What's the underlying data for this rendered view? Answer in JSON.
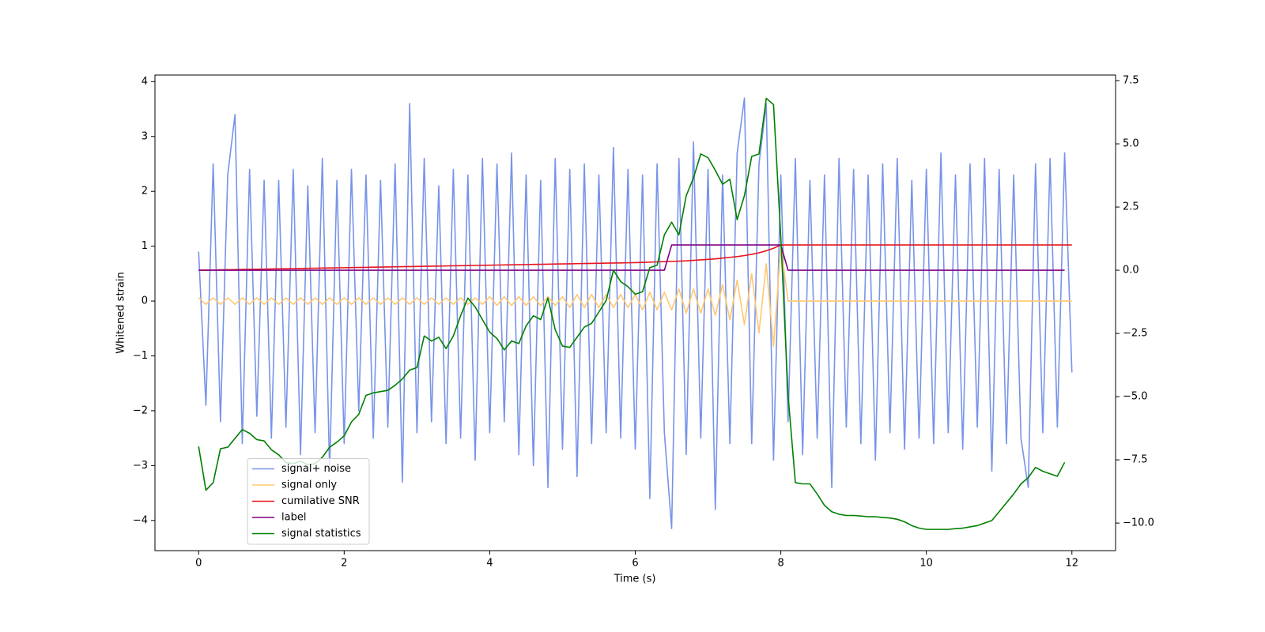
{
  "chart_data": {
    "type": "line",
    "xlabel": "Time (s)",
    "ylabel": "Whitened strain",
    "xlim": [
      -0.6,
      12.6
    ],
    "ylim": [
      -4.55,
      4.12
    ],
    "y2lim": [
      -11.09,
      7.72
    ],
    "xticks": [
      0,
      2,
      4,
      6,
      8,
      10,
      12
    ],
    "yticks": [
      {
        "value": -4,
        "label": "−4"
      },
      {
        "value": -3,
        "label": "−3"
      },
      {
        "value": -2,
        "label": "−2"
      },
      {
        "value": -1,
        "label": "−1"
      },
      0,
      1,
      2,
      3,
      4
    ],
    "y2ticks": [
      {
        "value": -10,
        "label": "−10.0"
      },
      {
        "value": -7.5,
        "label": "−7.5"
      },
      {
        "value": -5,
        "label": "−5.0"
      },
      {
        "value": -2.5,
        "label": "−2.5"
      },
      {
        "value": 0,
        "label": "0.0"
      },
      2.5,
      {
        "value": 5,
        "label": "5.0"
      },
      7.5
    ],
    "legend": "lower left",
    "x": [
      0,
      0.1,
      0.2,
      0.3,
      0.4,
      0.5,
      0.6,
      0.7,
      0.8,
      0.9,
      1,
      1.1,
      1.2,
      1.3,
      1.4,
      1.5,
      1.6,
      1.7,
      1.8,
      1.9,
      2,
      2.1,
      2.2,
      2.3,
      2.4,
      2.5,
      2.6,
      2.7,
      2.8,
      2.9,
      3,
      3.1,
      3.2,
      3.3,
      3.4,
      3.5,
      3.6,
      3.7,
      3.8,
      3.9,
      4,
      4.1,
      4.2,
      4.3,
      4.4,
      4.5,
      4.6,
      4.7,
      4.8,
      4.9,
      5,
      5.1,
      5.2,
      5.3,
      5.4,
      5.5,
      5.6,
      5.7,
      5.8,
      5.9,
      6,
      6.1,
      6.2,
      6.3,
      6.4,
      6.5,
      6.6,
      6.7,
      6.8,
      6.9,
      7,
      7.1,
      7.2,
      7.3,
      7.4,
      7.5,
      7.6,
      7.7,
      7.8,
      7.9,
      8,
      8.1,
      8.2,
      8.3,
      8.4,
      8.5,
      8.6,
      8.7,
      8.8,
      8.9,
      9,
      9.1,
      9.2,
      9.3,
      9.4,
      9.5,
      9.6,
      9.7,
      9.8,
      9.9,
      10,
      10.1,
      10.2,
      10.3,
      10.4,
      10.5,
      10.6,
      10.7,
      10.8,
      10.9,
      11,
      11.1,
      11.2,
      11.3,
      11.4,
      11.5,
      11.6,
      11.7,
      11.8,
      11.9,
      12
    ],
    "series": [
      {
        "name": "signal+ noise",
        "color": "#7893e8",
        "axis": "y",
        "values": [
          0.9,
          -1.9,
          2.5,
          -2.2,
          2.3,
          3.4,
          -2.6,
          2.4,
          -2.1,
          2.2,
          -2.5,
          2.2,
          -2.3,
          2.4,
          -2.8,
          2.1,
          -2.4,
          2.6,
          -3.1,
          2.2,
          -2.6,
          2.4,
          -2.0,
          2.3,
          -2.5,
          2.2,
          -2.3,
          2.5,
          -3.3,
          3.6,
          -2.4,
          2.6,
          -2.2,
          2.1,
          -2.6,
          2.4,
          -2.5,
          2.3,
          -2.9,
          2.6,
          -2.4,
          2.5,
          -2.2,
          2.7,
          -2.8,
          2.3,
          -3.0,
          2.2,
          -3.4,
          2.6,
          -2.7,
          2.4,
          -3.2,
          2.5,
          -2.6,
          2.3,
          -2.4,
          2.8,
          -2.5,
          2.4,
          -2.7,
          2.3,
          -3.6,
          2.5,
          -2.4,
          -4.15,
          2.6,
          -2.8,
          2.9,
          -2.5,
          2.4,
          -3.8,
          2.3,
          -2.6,
          2.7,
          3.7,
          -2.6,
          2.5,
          3.6,
          -2.9,
          2.3,
          -2.2,
          2.6,
          -2.8,
          2.2,
          -2.5,
          2.3,
          -3.4,
          2.6,
          -2.3,
          2.4,
          -2.6,
          2.3,
          -2.9,
          2.5,
          -2.4,
          2.6,
          -2.7,
          2.2,
          -2.5,
          2.4,
          -2.6,
          2.7,
          -2.4,
          2.3,
          -2.7,
          2.5,
          -2.3,
          2.6,
          -3.1,
          2.4,
          -2.6,
          2.3,
          -2.5,
          -3.4,
          2.5,
          -2.4,
          2.6,
          -2.3,
          2.7,
          -1.3
        ]
      },
      {
        "name": "signal only",
        "color": "#ffc870",
        "axis": "y",
        "values": [
          0.06,
          -0.06,
          0.06,
          -0.06,
          0.06,
          -0.06,
          0.06,
          -0.06,
          0.06,
          -0.06,
          0.06,
          -0.06,
          0.06,
          -0.06,
          0.06,
          -0.06,
          0.06,
          -0.06,
          0.06,
          -0.06,
          0.06,
          -0.06,
          0.06,
          -0.06,
          0.06,
          -0.06,
          0.06,
          -0.06,
          0.06,
          -0.06,
          0.06,
          -0.06,
          0.06,
          -0.06,
          0.06,
          -0.06,
          0.06,
          -0.06,
          0.06,
          -0.06,
          0.08,
          -0.08,
          0.08,
          -0.08,
          0.08,
          -0.08,
          0.08,
          -0.08,
          0.08,
          -0.08,
          0.08,
          -0.12,
          0.12,
          -0.12,
          0.12,
          -0.12,
          0.12,
          -0.12,
          0.12,
          -0.12,
          0.12,
          -0.16,
          0.16,
          -0.16,
          0.16,
          -0.16,
          0.22,
          -0.22,
          0.22,
          -0.22,
          0.22,
          -0.26,
          0.3,
          -0.34,
          0.38,
          -0.43,
          0.5,
          -0.58,
          0.68,
          -0.82,
          1.0,
          0,
          0,
          0,
          0,
          0,
          0,
          0,
          0,
          0,
          0,
          0,
          0,
          0,
          0,
          0,
          0,
          0,
          0,
          0,
          0,
          0,
          0,
          0,
          0,
          0,
          0,
          0,
          0,
          0,
          0,
          0,
          0,
          0,
          0,
          0,
          0,
          0,
          0,
          0,
          0
        ]
      },
      {
        "name": "cumilative SNR",
        "color": "#e8141c",
        "axis": "y2",
        "values": [
          0,
          0.005,
          0.01,
          0.015,
          0.02,
          0.025,
          0.03,
          0.035,
          0.04,
          0.045,
          0.05,
          0.055,
          0.06,
          0.065,
          0.07,
          0.075,
          0.08,
          0.085,
          0.09,
          0.095,
          0.1,
          0.105,
          0.11,
          0.115,
          0.12,
          0.125,
          0.13,
          0.135,
          0.14,
          0.145,
          0.15,
          0.155,
          0.16,
          0.165,
          0.17,
          0.175,
          0.18,
          0.185,
          0.19,
          0.195,
          0.2,
          0.205,
          0.21,
          0.215,
          0.22,
          0.225,
          0.23,
          0.235,
          0.24,
          0.245,
          0.25,
          0.255,
          0.26,
          0.265,
          0.27,
          0.275,
          0.28,
          0.285,
          0.29,
          0.295,
          0.3,
          0.31,
          0.32,
          0.33,
          0.34,
          0.35,
          0.36,
          0.37,
          0.39,
          0.41,
          0.43,
          0.45,
          0.48,
          0.51,
          0.54,
          0.58,
          0.63,
          0.69,
          0.77,
          0.87,
          1.0,
          1.0,
          1.0,
          1.0,
          1.0,
          1.0,
          1.0,
          1.0,
          1.0,
          1.0,
          1.0,
          1.0,
          1.0,
          1.0,
          1.0,
          1.0,
          1.0,
          1.0,
          1.0,
          1.0,
          1.0,
          1.0,
          1.0,
          1.0,
          1.0,
          1.0,
          1.0,
          1.0,
          1.0,
          1.0,
          1.0,
          1.0,
          1.0,
          1.0,
          1.0,
          1.0,
          1.0,
          1.0,
          1.0,
          1.0,
          1.0
        ]
      },
      {
        "name": "label",
        "color": "#800080",
        "axis": "y2",
        "values": [
          0,
          0,
          0,
          0,
          0,
          0,
          0,
          0,
          0,
          0,
          0,
          0,
          0,
          0,
          0,
          0,
          0,
          0,
          0,
          0,
          0,
          0,
          0,
          0,
          0,
          0,
          0,
          0,
          0,
          0,
          0,
          0,
          0,
          0,
          0,
          0,
          0,
          0,
          0,
          0,
          0,
          0,
          0,
          0,
          0,
          0,
          0,
          0,
          0,
          0,
          0,
          0,
          0,
          0,
          0,
          0,
          0,
          0,
          0,
          0,
          0,
          0,
          0,
          0,
          0,
          1,
          1,
          1,
          1,
          1,
          1,
          1,
          1,
          1,
          1,
          1,
          1,
          1,
          1,
          1,
          1,
          0,
          0,
          0,
          0,
          0,
          0,
          0,
          0,
          0,
          0,
          0,
          0,
          0,
          0,
          0,
          0,
          0,
          0,
          0,
          0,
          0,
          0,
          0,
          0,
          0,
          0,
          0,
          0,
          0,
          0,
          0,
          0,
          0,
          0,
          0,
          0,
          0,
          0,
          0,
          null
        ]
      },
      {
        "name": "signal statistics",
        "color": "#008000",
        "axis": "y2",
        "values": [
          -6.97,
          -8.7,
          -8.4,
          -7.06,
          -7.0,
          -6.65,
          -6.3,
          -6.45,
          -6.7,
          -6.75,
          -7.1,
          -7.3,
          -7.6,
          -7.65,
          -7.55,
          -7.7,
          -7.65,
          -7.4,
          -7.0,
          -6.8,
          -6.55,
          -6.0,
          -5.7,
          -4.95,
          -4.85,
          -4.8,
          -4.75,
          -4.55,
          -4.3,
          -3.95,
          -3.85,
          -2.6,
          -2.8,
          -2.65,
          -3.1,
          -2.6,
          -1.8,
          -1.1,
          -1.45,
          -1.95,
          -2.45,
          -2.7,
          -3.15,
          -2.8,
          -2.9,
          -2.2,
          -1.8,
          -1.95,
          -1.1,
          -2.35,
          -3.0,
          -3.05,
          -2.65,
          -2.25,
          -2.1,
          -1.65,
          -1.2,
          0.0,
          -0.45,
          -0.65,
          -0.95,
          -0.85,
          0.1,
          0.2,
          1.4,
          1.9,
          1.4,
          2.95,
          3.65,
          4.6,
          4.45,
          3.95,
          3.4,
          3.6,
          2.0,
          2.95,
          4.5,
          4.6,
          6.8,
          6.55,
          1.3,
          -4.95,
          -8.4,
          -8.45,
          -8.45,
          -8.85,
          -9.3,
          -9.55,
          -9.65,
          -9.7,
          -9.7,
          -9.72,
          -9.75,
          -9.75,
          -9.78,
          -9.8,
          -9.85,
          -9.95,
          -10.1,
          -10.2,
          -10.25,
          -10.25,
          -10.25,
          -10.25,
          -10.22,
          -10.2,
          -10.15,
          -10.1,
          -10.0,
          -9.9,
          -9.55,
          -9.2,
          -8.85,
          -8.45,
          -8.2,
          -7.8,
          -7.95,
          -8.05,
          -8.15,
          -7.6,
          null
        ]
      }
    ]
  }
}
